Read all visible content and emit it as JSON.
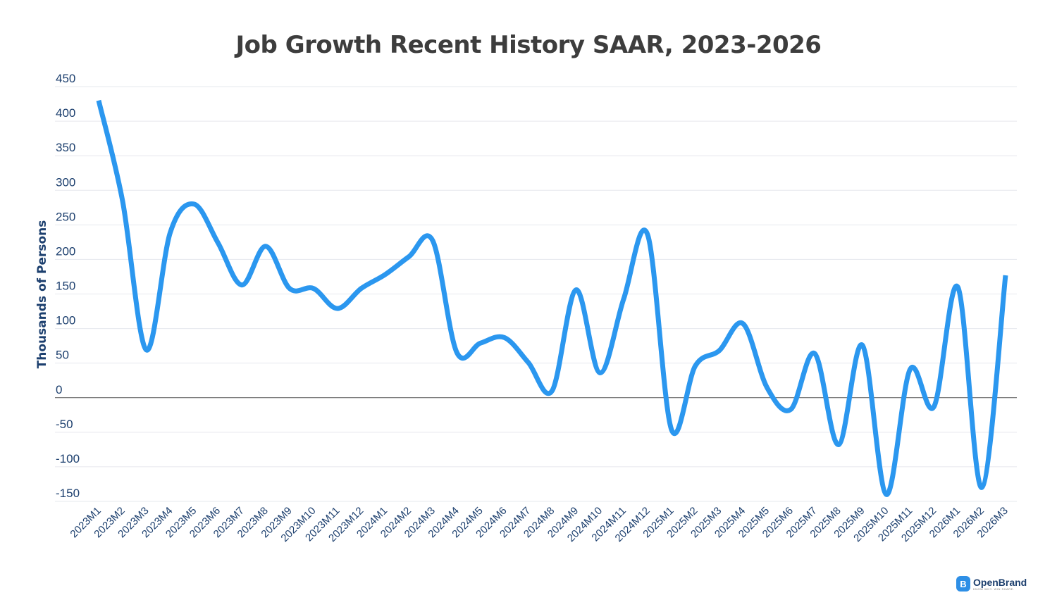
{
  "chart_data": {
    "type": "line",
    "title": "Job Growth Recent History SAAR, 2023-2026",
    "xlabel": "",
    "ylabel": "Thousands of Persons",
    "ylim": [
      -150,
      450
    ],
    "yticks": [
      450,
      400,
      350,
      300,
      250,
      200,
      150,
      100,
      50,
      0,
      -50,
      -100,
      -150
    ],
    "grid": true,
    "line_color": "#2b97ef",
    "categories": [
      "2023M1",
      "2023M2",
      "2023M3",
      "2023M4",
      "2023M5",
      "2023M6",
      "2023M7",
      "2023M8",
      "2023M9",
      "2023M10",
      "2023M11",
      "2023M12",
      "2024M1",
      "2024M2",
      "2024M3",
      "2024M4",
      "2024M5",
      "2024M6",
      "2024M7",
      "2024M8",
      "2024M9",
      "2024M10",
      "2024M11",
      "2024M12",
      "2025M1",
      "2025M2",
      "2025M3",
      "2025M4",
      "2025M5",
      "2025M6",
      "2025M7",
      "2025M8",
      "2025M9",
      "2025M10",
      "2025M11",
      "2025M12",
      "2026M1",
      "2026M2",
      "2026M3"
    ],
    "series": [
      {
        "name": "Job Growth",
        "values": [
          430,
          285,
          69,
          239,
          280,
          224,
          163,
          219,
          158,
          158,
          129,
          158,
          178,
          204,
          227,
          66,
          79,
          87,
          51,
          10,
          156,
          36,
          143,
          236,
          -46,
          46,
          68,
          107,
          15,
          -17,
          64,
          -68,
          76,
          -140,
          41,
          -13,
          160,
          -130,
          177
        ]
      }
    ]
  },
  "logo": {
    "name": "OpenBrand",
    "tagline": "KNOW WHY. WIN SHARE.",
    "mark": "B"
  }
}
